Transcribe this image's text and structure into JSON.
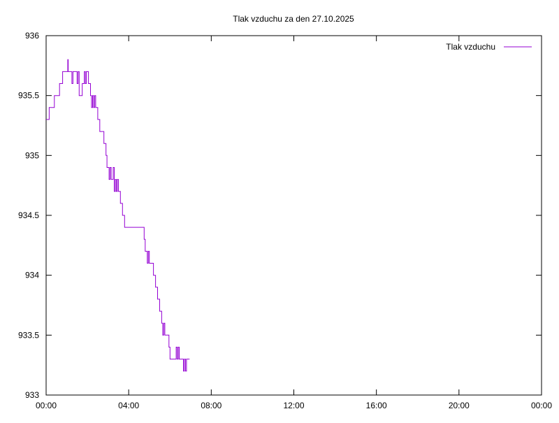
{
  "chart_data": {
    "type": "line",
    "title": "Tlak vzduchu za den 27.10.2025",
    "xlabel": "",
    "ylabel": "",
    "x_unit": "hours",
    "xlim": [
      0,
      24
    ],
    "ylim": [
      933,
      936
    ],
    "x_ticks": [
      {
        "value": 0,
        "label": "00:00"
      },
      {
        "value": 4,
        "label": "04:00"
      },
      {
        "value": 8,
        "label": "08:00"
      },
      {
        "value": 12,
        "label": "12:00"
      },
      {
        "value": 16,
        "label": "16:00"
      },
      {
        "value": 20,
        "label": "20:00"
      },
      {
        "value": 24,
        "label": "00:00"
      }
    ],
    "y_ticks": [
      {
        "value": 933,
        "label": "933"
      },
      {
        "value": 933.5,
        "label": "933.5"
      },
      {
        "value": 934,
        "label": "934"
      },
      {
        "value": 934.5,
        "label": "934.5"
      },
      {
        "value": 935,
        "label": "935"
      },
      {
        "value": 935.5,
        "label": "935.5"
      },
      {
        "value": 936,
        "label": "936"
      }
    ],
    "grid": false,
    "legend_position": "top-right",
    "series": [
      {
        "name": "Tlak vzduchu",
        "color": "#9400d3",
        "x": [
          0,
          0.08,
          0.15,
          0.25,
          0.4,
          0.45,
          0.6,
          0.65,
          0.7,
          0.8,
          0.9,
          0.95,
          1.0,
          1.05,
          1.07,
          1.1,
          1.15,
          1.2,
          1.25,
          1.3,
          1.35,
          1.4,
          1.45,
          1.5,
          1.55,
          1.6,
          1.65,
          1.7,
          1.75,
          1.8,
          1.85,
          1.9,
          1.95,
          2.0,
          2.05,
          2.1,
          2.15,
          2.2,
          2.25,
          2.3,
          2.35,
          2.4,
          2.45,
          2.5,
          2.55,
          2.6,
          2.65,
          2.7,
          2.8,
          2.9,
          2.95,
          3.0,
          3.05,
          3.1,
          3.15,
          3.2,
          3.25,
          3.3,
          3.35,
          3.4,
          3.45,
          3.5,
          3.55,
          3.6,
          3.65,
          3.7,
          3.75,
          3.8,
          3.85,
          3.9,
          3.95,
          4.0,
          4.05,
          4.1,
          4.15,
          4.2,
          4.3,
          4.5,
          4.7,
          4.75,
          4.8,
          4.85,
          4.9,
          4.95,
          5.0,
          5.05,
          5.1,
          5.2,
          5.3,
          5.4,
          5.5,
          5.55,
          5.6,
          5.65,
          5.7,
          5.75,
          5.8,
          5.85,
          5.9,
          5.95,
          6.0,
          6.05,
          6.1,
          6.2,
          6.3,
          6.35,
          6.4,
          6.45,
          6.5,
          6.55,
          6.6,
          6.65,
          6.7,
          6.75,
          6.8,
          6.85,
          6.9,
          6.95
        ],
        "y": [
          935.3,
          935.3,
          935.4,
          935.4,
          935.5,
          935.5,
          935.5,
          935.6,
          935.6,
          935.7,
          935.7,
          935.7,
          935.7,
          935.8,
          935.7,
          935.7,
          935.7,
          935.7,
          935.6,
          935.7,
          935.7,
          935.7,
          935.7,
          935.6,
          935.7,
          935.5,
          935.5,
          935.5,
          935.6,
          935.6,
          935.7,
          935.6,
          935.7,
          935.7,
          935.6,
          935.6,
          935.5,
          935.4,
          935.5,
          935.4,
          935.5,
          935.4,
          935.4,
          935.3,
          935.3,
          935.2,
          935.2,
          935.2,
          935.1,
          935.0,
          934.9,
          934.9,
          934.8,
          934.9,
          934.8,
          934.8,
          934.9,
          934.7,
          934.8,
          934.7,
          934.8,
          934.7,
          934.7,
          934.6,
          934.6,
          934.5,
          934.5,
          934.4,
          934.4,
          934.4,
          934.4,
          934.4,
          934.4,
          934.4,
          934.4,
          934.4,
          934.4,
          934.4,
          934.4,
          934.3,
          934.2,
          934.2,
          934.1,
          934.2,
          934.1,
          934.1,
          934.1,
          934.0,
          933.9,
          933.8,
          933.7,
          933.7,
          933.6,
          933.5,
          933.6,
          933.5,
          933.5,
          933.5,
          933.5,
          933.4,
          933.3,
          933.3,
          933.3,
          933.3,
          933.4,
          933.3,
          933.4,
          933.3,
          933.3,
          933.3,
          933.3,
          933.2,
          933.3,
          933.2,
          933.3,
          933.3,
          933.3,
          933.3
        ]
      }
    ]
  }
}
